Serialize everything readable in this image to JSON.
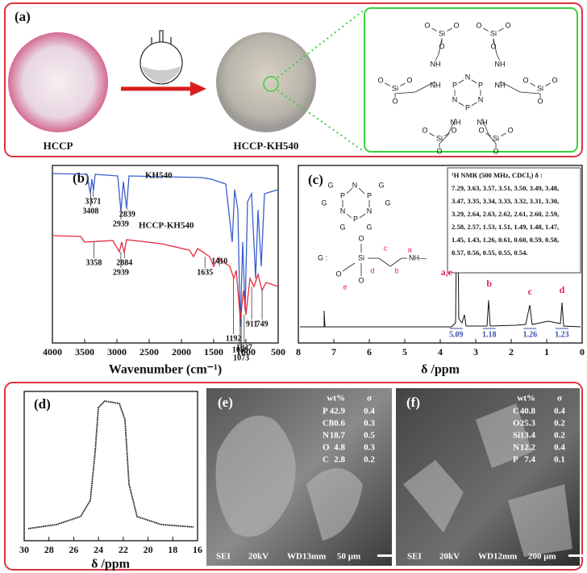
{
  "panel_a": {
    "label": "(a)",
    "captions": [
      "HCCP",
      "HCCP-KH540"
    ],
    "structure": {
      "si": "Si",
      "o": "O",
      "nh": "NH",
      "p": "P",
      "n": "N"
    }
  },
  "panel_b": {
    "label": "(b)",
    "series": [
      {
        "name": "KH540",
        "color": "#3a5fcd",
        "peaks": [
          3408,
          3371,
          2939,
          2839
        ]
      },
      {
        "name": "HCCP-KH540",
        "color": "#e8283c",
        "peaks": [
          3358,
          2939,
          2884,
          1635,
          1410,
          1192,
          1089,
          1073,
          1027,
          911,
          749
        ]
      }
    ],
    "xlim": [
      4000,
      500
    ],
    "xticks": [
      4000,
      3500,
      3000,
      2500,
      2000,
      1500,
      1000,
      500
    ],
    "x_label": "Wavenumber (cm⁻¹)"
  },
  "panel_c": {
    "label": "(c)",
    "xlim": [
      8,
      0
    ],
    "xticks": [
      8,
      7,
      6,
      5,
      4,
      3,
      2,
      1,
      0
    ],
    "x_label": "δ /ppm",
    "nmr_title": "¹H NMR (500 MHz, CDCl₃) δ :",
    "nmr_lines": [
      "7.29, 3.63, 3.57, 3.51, 3.50, 3.49, 3.48,",
      "3.47, 3.35, 3.34, 3.33, 3.32, 3.31, 3.30,",
      "3.29, 2.64, 2.63, 2.62, 2.61, 2.60, 2.59,",
      "2.58, 2.57, 1.53, 1.51, 1.49, 1.48, 1.47,",
      "1.45, 1.43, 1.26, 0.61, 0.60, 0.59, 0.58,",
      "0.57, 0.56, 0.55, 0.55, 0.54."
    ],
    "peak_labels": [
      "a,e",
      "b",
      "c",
      "d"
    ],
    "integrals": [
      5.09,
      1.18,
      1.26,
      1.23
    ],
    "structure": {
      "g": "G",
      "n": "N",
      "p": "P",
      "g_colon": "G :",
      "si": "Si",
      "o": "O",
      "nh": "NH—",
      "chain": [
        "a",
        "b",
        "c",
        "d",
        "e"
      ]
    }
  },
  "panel_d": {
    "label": "(d)",
    "xlim": [
      30,
      16
    ],
    "xticks": [
      30,
      28,
      26,
      24,
      22,
      20,
      18,
      16
    ],
    "x_label": "δ /ppm"
  },
  "panel_e": {
    "label": "(e)",
    "header": [
      "wt%",
      "σ"
    ],
    "rows": [
      [
        "P",
        42.9,
        0.4
      ],
      [
        "Cl",
        30.6,
        0.3
      ],
      [
        "N",
        18.7,
        0.5
      ],
      [
        "O",
        4.8,
        0.3
      ],
      [
        "C",
        2.8,
        0.2
      ]
    ],
    "footer": [
      "SEI",
      "20kV",
      "WD13mm",
      "50 μm"
    ]
  },
  "panel_f": {
    "label": "(f)",
    "header": [
      "wt%",
      "σ"
    ],
    "rows": [
      [
        "C",
        40.8,
        0.4
      ],
      [
        "O",
        25.3,
        0.2
      ],
      [
        "Si",
        13.4,
        0.2
      ],
      [
        "N",
        12.2,
        0.4
      ],
      [
        "P",
        7.4,
        0.1
      ]
    ],
    "footer": [
      "SEI",
      "20kV",
      "WD12mm",
      "200 μm"
    ]
  }
}
